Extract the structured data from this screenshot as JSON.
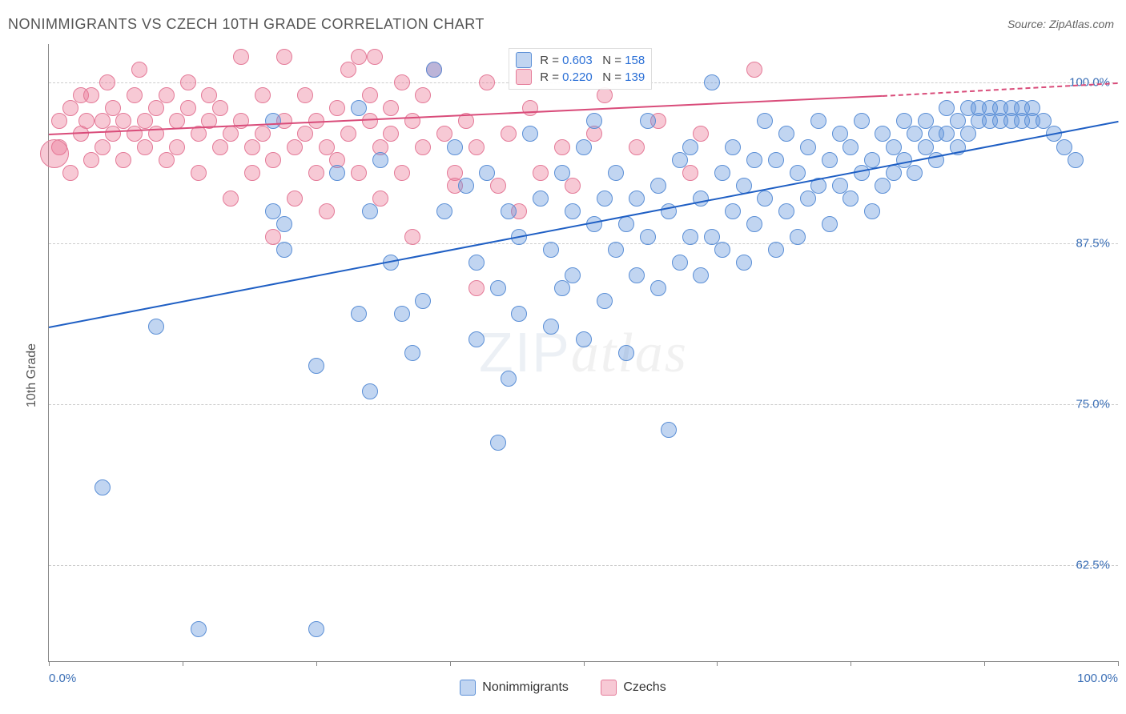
{
  "title": "NONIMMIGRANTS VS CZECH 10TH GRADE CORRELATION CHART",
  "source": "Source: ZipAtlas.com",
  "ylabel": "10th Grade",
  "watermark": {
    "a": "ZIP",
    "b": "atlas"
  },
  "chart": {
    "type": "scatter",
    "background_color": "#ffffff",
    "grid_color": "#cccccc",
    "axis_color": "#888888",
    "xlim": [
      0,
      100
    ],
    "ylim": [
      55,
      103
    ],
    "ytick_labels": [
      "62.5%",
      "75.0%",
      "87.5%",
      "100.0%"
    ],
    "ytick_values": [
      62.5,
      75.0,
      87.5,
      100.0
    ],
    "ytick_color": "#3b6fb6",
    "xtick_positions": [
      0,
      12.5,
      25,
      37.5,
      50,
      62.5,
      75,
      87.5,
      100
    ],
    "x_left_label": "0.0%",
    "x_right_label": "100.0%",
    "x_label_color": "#3b6fb6"
  },
  "series_blue": {
    "name": "Nonimmigrants",
    "fill": "rgba(100,150,220,0.40)",
    "stroke": "#5b8fd6",
    "point_radius": 10,
    "trend_color": "#1f5fc4",
    "trend_start": [
      0,
      81
    ],
    "trend_end": [
      100,
      97
    ],
    "R": "0.603",
    "N": "158",
    "points": [
      [
        5,
        68.5
      ],
      [
        14,
        57.5
      ],
      [
        25,
        57.5
      ],
      [
        10,
        81
      ],
      [
        25,
        78
      ],
      [
        29,
        82
      ],
      [
        30,
        76
      ],
      [
        34,
        79
      ],
      [
        21,
        90
      ],
      [
        22,
        89
      ],
      [
        21,
        97
      ],
      [
        22,
        87
      ],
      [
        27,
        93
      ],
      [
        29,
        98
      ],
      [
        30,
        90
      ],
      [
        31,
        94
      ],
      [
        32,
        86
      ],
      [
        33,
        82
      ],
      [
        35,
        83
      ],
      [
        36,
        101
      ],
      [
        37,
        90
      ],
      [
        38,
        95
      ],
      [
        39,
        92
      ],
      [
        40,
        86
      ],
      [
        40,
        80
      ],
      [
        41,
        93
      ],
      [
        42,
        84
      ],
      [
        42,
        72
      ],
      [
        43,
        90
      ],
      [
        43,
        77
      ],
      [
        44,
        88
      ],
      [
        44,
        82
      ],
      [
        45,
        96
      ],
      [
        46,
        91
      ],
      [
        47,
        87
      ],
      [
        47,
        81
      ],
      [
        48,
        93
      ],
      [
        48,
        84
      ],
      [
        49,
        90
      ],
      [
        49,
        85
      ],
      [
        50,
        95
      ],
      [
        50,
        80
      ],
      [
        51,
        89
      ],
      [
        51,
        97
      ],
      [
        52,
        91
      ],
      [
        52,
        83
      ],
      [
        53,
        87
      ],
      [
        53,
        93
      ],
      [
        54,
        89
      ],
      [
        54,
        79
      ],
      [
        55,
        91
      ],
      [
        55,
        85
      ],
      [
        56,
        97
      ],
      [
        56,
        88
      ],
      [
        57,
        92
      ],
      [
        57,
        84
      ],
      [
        58,
        73
      ],
      [
        58,
        90
      ],
      [
        59,
        94
      ],
      [
        59,
        86
      ],
      [
        60,
        88
      ],
      [
        60,
        95
      ],
      [
        61,
        85
      ],
      [
        61,
        91
      ],
      [
        62,
        100
      ],
      [
        62,
        88
      ],
      [
        63,
        93
      ],
      [
        63,
        87
      ],
      [
        64,
        90
      ],
      [
        64,
        95
      ],
      [
        65,
        92
      ],
      [
        65,
        86
      ],
      [
        66,
        94
      ],
      [
        66,
        89
      ],
      [
        67,
        97
      ],
      [
        67,
        91
      ],
      [
        68,
        87
      ],
      [
        68,
        94
      ],
      [
        69,
        90
      ],
      [
        69,
        96
      ],
      [
        70,
        93
      ],
      [
        70,
        88
      ],
      [
        71,
        95
      ],
      [
        71,
        91
      ],
      [
        72,
        92
      ],
      [
        72,
        97
      ],
      [
        73,
        94
      ],
      [
        73,
        89
      ],
      [
        74,
        96
      ],
      [
        74,
        92
      ],
      [
        75,
        91
      ],
      [
        75,
        95
      ],
      [
        76,
        93
      ],
      [
        76,
        97
      ],
      [
        77,
        90
      ],
      [
        77,
        94
      ],
      [
        78,
        96
      ],
      [
        78,
        92
      ],
      [
        79,
        95
      ],
      [
        79,
        93
      ],
      [
        80,
        97
      ],
      [
        80,
        94
      ],
      [
        81,
        96
      ],
      [
        81,
        93
      ],
      [
        82,
        97
      ],
      [
        82,
        95
      ],
      [
        83,
        96
      ],
      [
        83,
        94
      ],
      [
        84,
        98
      ],
      [
        84,
        96
      ],
      [
        85,
        97
      ],
      [
        85,
        95
      ],
      [
        86,
        98
      ],
      [
        86,
        96
      ],
      [
        87,
        97
      ],
      [
        87,
        98
      ],
      [
        88,
        97
      ],
      [
        88,
        98
      ],
      [
        89,
        98
      ],
      [
        89,
        97
      ],
      [
        90,
        98
      ],
      [
        90,
        97
      ],
      [
        91,
        98
      ],
      [
        91,
        97
      ],
      [
        92,
        98
      ],
      [
        92,
        97
      ],
      [
        93,
        97
      ],
      [
        94,
        96
      ],
      [
        95,
        95
      ],
      [
        96,
        94
      ]
    ]
  },
  "series_pink": {
    "name": "Czechs",
    "fill": "rgba(235,120,150,0.40)",
    "stroke": "#e47a98",
    "point_radius": 10,
    "trend_color": "#d94c7a",
    "trend_solid_start": [
      0,
      96
    ],
    "trend_solid_end": [
      78,
      99
    ],
    "trend_dash_end": [
      100,
      100
    ],
    "R": "0.220",
    "N": "139",
    "points": [
      [
        1,
        97
      ],
      [
        1,
        95
      ],
      [
        2,
        98
      ],
      [
        2,
        93
      ],
      [
        3,
        99
      ],
      [
        3,
        96
      ],
      [
        3.5,
        97
      ],
      [
        4,
        94
      ],
      [
        4,
        99
      ],
      [
        5,
        97
      ],
      [
        5,
        95
      ],
      [
        5.5,
        100
      ],
      [
        6,
        96
      ],
      [
        6,
        98
      ],
      [
        7,
        97
      ],
      [
        7,
        94
      ],
      [
        8,
        99
      ],
      [
        8,
        96
      ],
      [
        8.5,
        101
      ],
      [
        9,
        97
      ],
      [
        9,
        95
      ],
      [
        10,
        98
      ],
      [
        10,
        96
      ],
      [
        11,
        99
      ],
      [
        11,
        94
      ],
      [
        12,
        97
      ],
      [
        12,
        95
      ],
      [
        13,
        98
      ],
      [
        13,
        100
      ],
      [
        14,
        96
      ],
      [
        14,
        93
      ],
      [
        15,
        99
      ],
      [
        15,
        97
      ],
      [
        16,
        95
      ],
      [
        16,
        98
      ],
      [
        17,
        96
      ],
      [
        17,
        91
      ],
      [
        18,
        102
      ],
      [
        18,
        97
      ],
      [
        19,
        95
      ],
      [
        19,
        93
      ],
      [
        20,
        99
      ],
      [
        20,
        96
      ],
      [
        21,
        94
      ],
      [
        21,
        88
      ],
      [
        22,
        102
      ],
      [
        22,
        97
      ],
      [
        23,
        95
      ],
      [
        23,
        91
      ],
      [
        24,
        99
      ],
      [
        24,
        96
      ],
      [
        25,
        93
      ],
      [
        25,
        97
      ],
      [
        26,
        95
      ],
      [
        26,
        90
      ],
      [
        27,
        98
      ],
      [
        27,
        94
      ],
      [
        28,
        101
      ],
      [
        28,
        96
      ],
      [
        29,
        102
      ],
      [
        29,
        93
      ],
      [
        30,
        97
      ],
      [
        30,
        99
      ],
      [
        30.5,
        102
      ],
      [
        31,
        95
      ],
      [
        31,
        91
      ],
      [
        32,
        98
      ],
      [
        32,
        96
      ],
      [
        33,
        93
      ],
      [
        33,
        100
      ],
      [
        34,
        97
      ],
      [
        34,
        88
      ],
      [
        35,
        95
      ],
      [
        35,
        99
      ],
      [
        36,
        101
      ],
      [
        37,
        96
      ],
      [
        38,
        93
      ],
      [
        38,
        92
      ],
      [
        39,
        97
      ],
      [
        40,
        95
      ],
      [
        40,
        84
      ],
      [
        41,
        100
      ],
      [
        42,
        92
      ],
      [
        43,
        96
      ],
      [
        45,
        98
      ],
      [
        46,
        93
      ],
      [
        48,
        95
      ],
      [
        49,
        92
      ],
      [
        51,
        96
      ],
      [
        52,
        99
      ],
      [
        55,
        95
      ],
      [
        57,
        97
      ],
      [
        60,
        93
      ],
      [
        61,
        96
      ],
      [
        66,
        101
      ],
      [
        44,
        90
      ]
    ]
  },
  "series_big_pink_point": {
    "x": 0.5,
    "y": 94.5,
    "r": 18
  },
  "legend_top": {
    "r_label": "R =",
    "n_label": "N =",
    "value_color": "#2a6fd6"
  },
  "legend_bottom": {
    "a": "Nonimmigrants",
    "b": "Czechs"
  }
}
